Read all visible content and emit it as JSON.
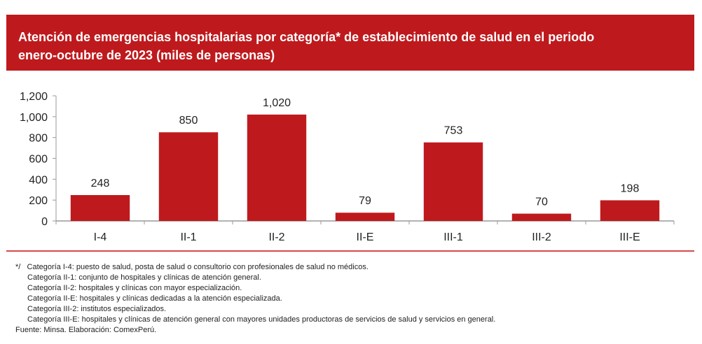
{
  "chart_data": {
    "type": "bar",
    "title": "Atención de emergencias hospitalarias por categoría* de establecimiento de salud en el periodo enero-octubre de 2023 (miles de personas)",
    "categories": [
      "I-4",
      "II-1",
      "II-2",
      "II-E",
      "III-1",
      "III-2",
      "III-E"
    ],
    "values": [
      248,
      850,
      1020,
      79,
      753,
      70,
      198
    ],
    "data_labels": [
      "248",
      "850",
      "1,020",
      "79",
      "753",
      "70",
      "198"
    ],
    "xlabel": "",
    "ylabel": "",
    "ylim": [
      0,
      1200
    ],
    "yticks": [
      0,
      200,
      400,
      600,
      800,
      1000,
      1200
    ],
    "ytick_labels": [
      "0",
      "200",
      "400",
      "600",
      "800",
      "1,000",
      "1,200"
    ],
    "grid": false,
    "legend": "none",
    "bar_color": "#be1a1d"
  },
  "header": {
    "title_line1": "Atención de emergencias hospitalarias por categoría* de establecimiento de salud en el periodo",
    "title_line2": "enero-octubre de 2023 (miles de personas)"
  },
  "notes": {
    "marker": "*/",
    "lines": [
      "Categoría I-4: puesto de salud, posta de salud o consultorio con profesionales de salud no médicos.",
      "Categoría II-1: conjunto de hospitales y clínicas de atención general.",
      "Categoría II-2: hospitales y clínicas con mayor especialización.",
      "Categoría II-E: hospitales y clínicas dedicadas a la atención especializada.",
      "Categoría III-2: institutos especializados.",
      "Categoría III-E: hospitales y clínicas de atención general con mayores unidades productoras de servicios de salud y servicios en general."
    ],
    "source": "Fuente: Minsa. Elaboración: ComexPerú."
  }
}
